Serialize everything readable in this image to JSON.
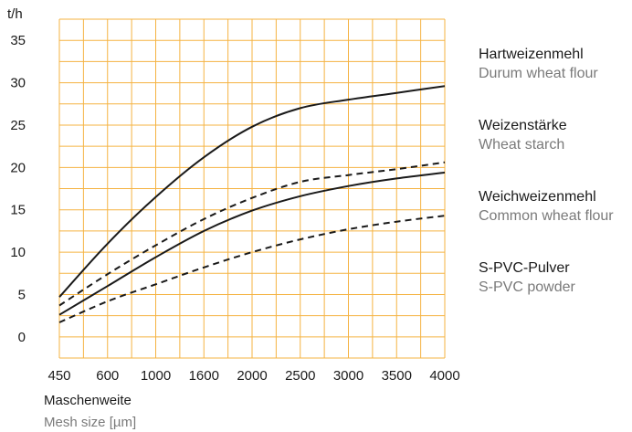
{
  "chart_data": {
    "type": "line",
    "ylabel": "t/h",
    "xlabel": "Maschenweite",
    "xlabel_sub": "Mesh size [µm]",
    "categories": [
      "450",
      "600",
      "1000",
      "1600",
      "2000",
      "2500",
      "3000",
      "3500",
      "4000"
    ],
    "y_ticks": [
      0,
      5,
      10,
      15,
      20,
      25,
      30,
      35
    ],
    "ylim": [
      -2.5,
      37.5
    ],
    "grid": true,
    "grid_color": "#f5b342",
    "legend_position": "right",
    "series": [
      {
        "name": "Hartweizenmehl",
        "name_en": "Durum wheat flour",
        "style": "solid",
        "values": [
          4.7,
          11.0,
          16.5,
          21.2,
          24.8,
          27.0,
          28.0,
          28.8,
          29.6
        ]
      },
      {
        "name": "Weizenstärke",
        "name_en": "Wheat starch",
        "style": "dashed",
        "values": [
          3.7,
          7.4,
          10.8,
          13.9,
          16.4,
          18.3,
          19.1,
          19.8,
          20.6
        ]
      },
      {
        "name": "Weichweizenmehl",
        "name_en": "Common wheat flour",
        "style": "solid",
        "values": [
          2.6,
          6.0,
          9.4,
          12.5,
          14.9,
          16.6,
          17.8,
          18.7,
          19.4
        ]
      },
      {
        "name": "S-PVC-Pulver",
        "name_en": "S-PVC powder",
        "style": "dashed",
        "values": [
          1.7,
          4.2,
          6.2,
          8.2,
          10.0,
          11.5,
          12.7,
          13.6,
          14.3
        ]
      }
    ]
  }
}
